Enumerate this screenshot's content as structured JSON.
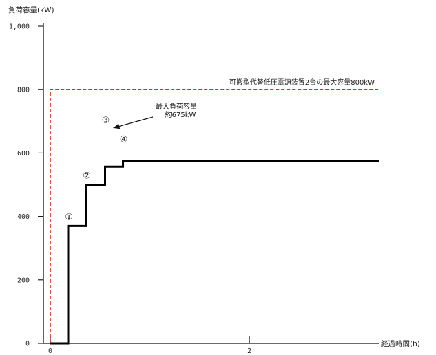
{
  "chart_data": {
    "type": "line",
    "title": "",
    "ylabel": "負荷容量(kW)",
    "xlabel": "経過時間(h)",
    "xlim": [
      0,
      3.3
    ],
    "ylim": [
      0,
      1000
    ],
    "y_ticks": [
      {
        "value": 0,
        "label": "0"
      },
      {
        "value": 200,
        "label": "200"
      },
      {
        "value": 400,
        "label": "400"
      },
      {
        "value": 600,
        "label": "600"
      },
      {
        "value": 800,
        "label": "800"
      },
      {
        "value": 1000,
        "label": "1,000"
      }
    ],
    "x_ticks": [
      {
        "value": 0,
        "label": "0"
      },
      {
        "value": 2,
        "label": "2"
      }
    ],
    "grid": false,
    "series": [
      {
        "kind": "step",
        "color": "#000000",
        "points": [
          [
            0.0,
            0
          ],
          [
            0.18,
            0
          ],
          [
            0.18,
            370
          ],
          [
            0.36,
            370
          ],
          [
            0.36,
            500
          ],
          [
            0.55,
            500
          ],
          [
            0.55,
            557
          ],
          [
            0.73,
            557
          ],
          [
            0.73,
            575
          ],
          [
            3.3,
            575
          ]
        ]
      },
      {
        "kind": "limit",
        "color": "#d62a1e",
        "points": [
          [
            0.0,
            0
          ],
          [
            0.0,
            800
          ],
          [
            3.3,
            800
          ]
        ],
        "label": "可搬型代替低圧電源装置2台の最大容量800kW"
      }
    ],
    "markers": [
      {
        "label": "①",
        "x": 0.18,
        "y": 370
      },
      {
        "label": "②",
        "x": 0.36,
        "y": 500
      },
      {
        "label": "③",
        "x": 0.55,
        "y": 675
      },
      {
        "label": "④",
        "x": 0.73,
        "y": 615
      }
    ],
    "annotation": {
      "line1": "最大負荷容量",
      "line2": "約675kW",
      "x": 0.55,
      "y": 675
    }
  }
}
